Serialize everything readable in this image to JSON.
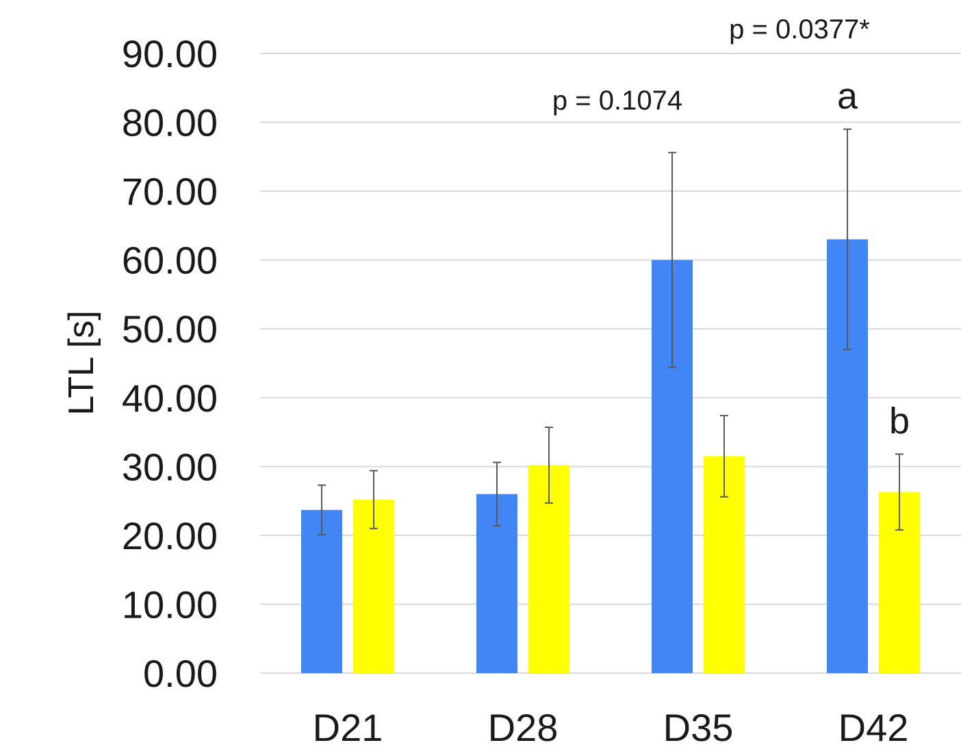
{
  "chart_data": {
    "type": "bar",
    "title": "",
    "xlabel": "",
    "ylabel": "LTL [s]",
    "ylim": [
      0,
      90
    ],
    "ytick_step": 10,
    "ytick_format_decimals": 2,
    "grid": true,
    "legend": "none",
    "categories": [
      "D21",
      "D28",
      "D35",
      "D42"
    ],
    "series": [
      {
        "color": "#4285f4",
        "values": [
          23.7,
          26.0,
          60.0,
          63.0
        ],
        "error": [
          3.6,
          4.6,
          15.6,
          16.0
        ]
      },
      {
        "color": "#ffff00",
        "values": [
          25.2,
          30.2,
          31.5,
          26.3
        ],
        "error": [
          4.2,
          5.5,
          5.9,
          5.5
        ]
      }
    ],
    "annotations": [
      {
        "id": "p-d35",
        "text": "p = 0.1074",
        "category": "D35",
        "kind": "p-value"
      },
      {
        "id": "p-d42",
        "text": "p = 0.0377*",
        "category": "D42",
        "kind": "p-value"
      },
      {
        "id": "letter-a",
        "text": "a",
        "category": "D42",
        "series": 0,
        "kind": "letter"
      },
      {
        "id": "letter-b",
        "text": "b",
        "category": "D42",
        "series": 1,
        "kind": "letter"
      }
    ]
  }
}
